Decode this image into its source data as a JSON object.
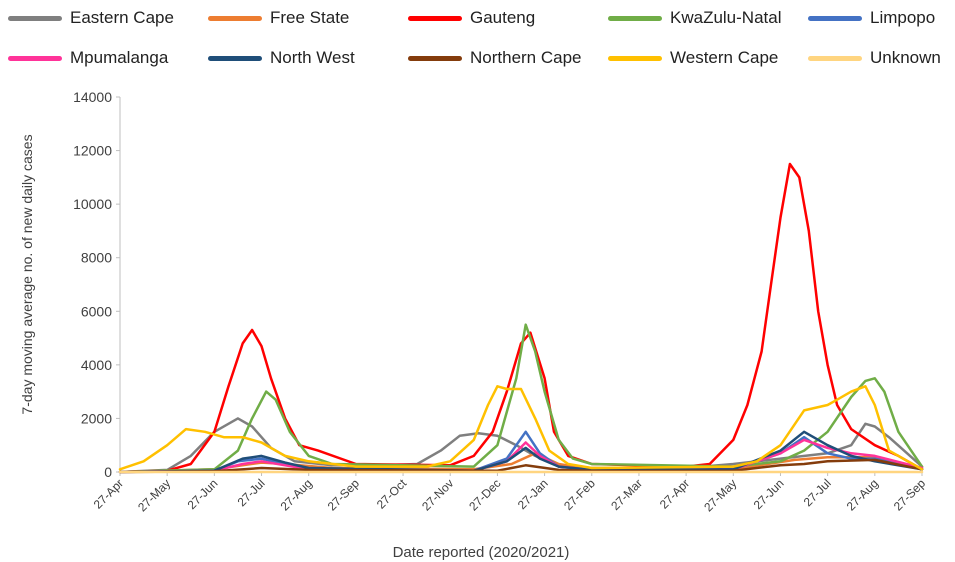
{
  "chart_data": {
    "type": "line",
    "xlabel": "Date reported (2020/2021)",
    "ylabel": "7-day moving average no. of new daily cases",
    "ylim": [
      0,
      14000
    ],
    "yticks": [
      0,
      2000,
      4000,
      6000,
      8000,
      10000,
      12000,
      14000
    ],
    "ytick_labels": [
      "0",
      "2000",
      "4000",
      "6000",
      "8000",
      "10000",
      "12000",
      "14000"
    ],
    "xlim": [
      0,
      17
    ],
    "xticks": [
      0,
      1,
      2,
      3,
      4,
      5,
      6,
      7,
      8,
      9,
      10,
      11,
      12,
      13,
      14,
      15,
      16,
      17
    ],
    "xtick_labels": [
      "27-Apr",
      "27-May",
      "27-Jun",
      "27-Jul",
      "27-Aug",
      "27-Sep",
      "27-Oct",
      "27-Nov",
      "27-Dec",
      "27-Jan",
      "27-Feb",
      "27-Mar",
      "27-Apr",
      "27-May",
      "27-Jun",
      "27-Jul",
      "27-Aug",
      "27-Sep"
    ],
    "legend_position": "top",
    "grid": false,
    "series": [
      {
        "name": "Eastern Cape",
        "color": "#7f7f7f",
        "x": [
          0,
          1,
          1.5,
          2,
          2.5,
          2.8,
          3.2,
          3.7,
          4.5,
          5.5,
          6.3,
          6.8,
          7.2,
          7.6,
          8,
          8.4,
          8.8,
          9.2,
          10,
          12,
          13,
          14,
          15,
          15.5,
          15.8,
          16,
          16.3,
          17
        ],
        "y": [
          0,
          80,
          600,
          1500,
          2000,
          1700,
          900,
          400,
          250,
          250,
          300,
          800,
          1350,
          1450,
          1350,
          1000,
          600,
          300,
          150,
          150,
          300,
          500,
          700,
          1000,
          1800,
          1700,
          1300,
          200
        ]
      },
      {
        "name": "Free State",
        "color": "#ed7d31",
        "x": [
          0,
          2,
          3,
          3.5,
          4.5,
          7.5,
          8.3,
          8.8,
          9.3,
          10,
          13,
          14.3,
          15,
          16,
          17
        ],
        "y": [
          0,
          100,
          350,
          300,
          150,
          100,
          300,
          700,
          300,
          100,
          100,
          450,
          550,
          550,
          150
        ]
      },
      {
        "name": "Gauteng",
        "color": "#ff0000",
        "x": [
          0,
          1,
          1.5,
          2,
          2.3,
          2.6,
          2.8,
          3,
          3.2,
          3.5,
          3.8,
          4.2,
          5,
          7,
          7.5,
          7.9,
          8.2,
          8.5,
          8.7,
          9,
          9.2,
          9.5,
          10,
          12,
          12.5,
          13,
          13.3,
          13.6,
          13.8,
          14,
          14.2,
          14.4,
          14.6,
          14.8,
          15,
          15.2,
          15.5,
          16,
          16.5,
          17
        ],
        "y": [
          0,
          50,
          300,
          1500,
          3200,
          4800,
          5300,
          4700,
          3500,
          2000,
          1000,
          800,
          300,
          250,
          600,
          1500,
          3000,
          4800,
          5200,
          3500,
          1500,
          600,
          300,
          200,
          300,
          1200,
          2500,
          4500,
          7000,
          9500,
          11500,
          11000,
          9000,
          6000,
          4000,
          2500,
          1600,
          1000,
          600,
          100
        ]
      },
      {
        "name": "KwaZulu-Natal",
        "color": "#70ad47",
        "x": [
          0,
          2,
          2.5,
          2.8,
          3.1,
          3.3,
          3.6,
          4,
          4.5,
          7.5,
          8,
          8.4,
          8.6,
          8.8,
          9,
          9.3,
          9.6,
          10,
          13,
          14,
          14.5,
          15,
          15.5,
          15.8,
          16,
          16.2,
          16.5,
          17
        ],
        "y": [
          0,
          100,
          800,
          2000,
          3000,
          2700,
          1500,
          600,
          300,
          200,
          1000,
          3500,
          5500,
          4500,
          3000,
          1200,
          500,
          300,
          200,
          400,
          800,
          1500,
          2800,
          3400,
          3500,
          3000,
          1500,
          200
        ]
      },
      {
        "name": "Limpopo",
        "color": "#4472c4",
        "x": [
          0,
          2,
          2.5,
          3,
          3.5,
          4,
          7.5,
          8.2,
          8.6,
          8.9,
          9.3,
          10,
          13,
          14,
          14.5,
          15,
          15.5,
          16,
          17
        ],
        "y": [
          0,
          50,
          400,
          500,
          300,
          100,
          50,
          500,
          1500,
          700,
          200,
          80,
          100,
          700,
          1300,
          700,
          500,
          500,
          100
        ]
      },
      {
        "name": "Mpumalanga",
        "color": "#ff3399",
        "x": [
          0,
          2,
          2.6,
          3,
          3.5,
          4,
          7.5,
          8.2,
          8.6,
          8.9,
          9.3,
          10,
          13,
          14,
          14.5,
          15,
          15.5,
          16,
          17
        ],
        "y": [
          0,
          50,
          300,
          400,
          250,
          100,
          50,
          400,
          1100,
          600,
          200,
          80,
          100,
          700,
          1200,
          900,
          700,
          600,
          150
        ]
      },
      {
        "name": "North West",
        "color": "#1f4e79",
        "x": [
          0,
          2,
          2.6,
          3,
          3.5,
          4,
          7.5,
          8.2,
          8.6,
          8.9,
          9.3,
          10,
          13,
          14,
          14.5,
          15,
          15.5,
          16,
          17
        ],
        "y": [
          0,
          50,
          500,
          600,
          350,
          150,
          50,
          400,
          900,
          500,
          200,
          80,
          100,
          800,
          1500,
          1000,
          600,
          400,
          100
        ]
      },
      {
        "name": "Northern Cape",
        "color": "#843c0c",
        "x": [
          0,
          2,
          3,
          4,
          8,
          8.6,
          9.3,
          10,
          13,
          14,
          14.5,
          15,
          16,
          17
        ],
        "y": [
          0,
          30,
          150,
          80,
          50,
          250,
          80,
          40,
          50,
          250,
          300,
          400,
          450,
          100
        ]
      },
      {
        "name": "Western Cape",
        "color": "#ffc000",
        "x": [
          0,
          0.5,
          1,
          1.4,
          1.8,
          2.2,
          2.6,
          3,
          3.5,
          4,
          5,
          6.5,
          7,
          7.5,
          7.8,
          8,
          8.2,
          8.5,
          8.8,
          9.1,
          9.5,
          10,
          13,
          13.5,
          14,
          14.5,
          15,
          15.2,
          15.5,
          15.8,
          16,
          16.3,
          17
        ],
        "y": [
          100,
          400,
          1000,
          1600,
          1500,
          1300,
          1300,
          1100,
          600,
          400,
          200,
          200,
          400,
          1200,
          2500,
          3200,
          3100,
          3100,
          2000,
          800,
          300,
          150,
          200,
          400,
          1000,
          2300,
          2500,
          2700,
          3000,
          3200,
          2500,
          800,
          100
        ]
      },
      {
        "name": "Unknown",
        "color": "#ffd580",
        "x": [
          0,
          17
        ],
        "y": [
          0,
          0
        ]
      }
    ]
  }
}
